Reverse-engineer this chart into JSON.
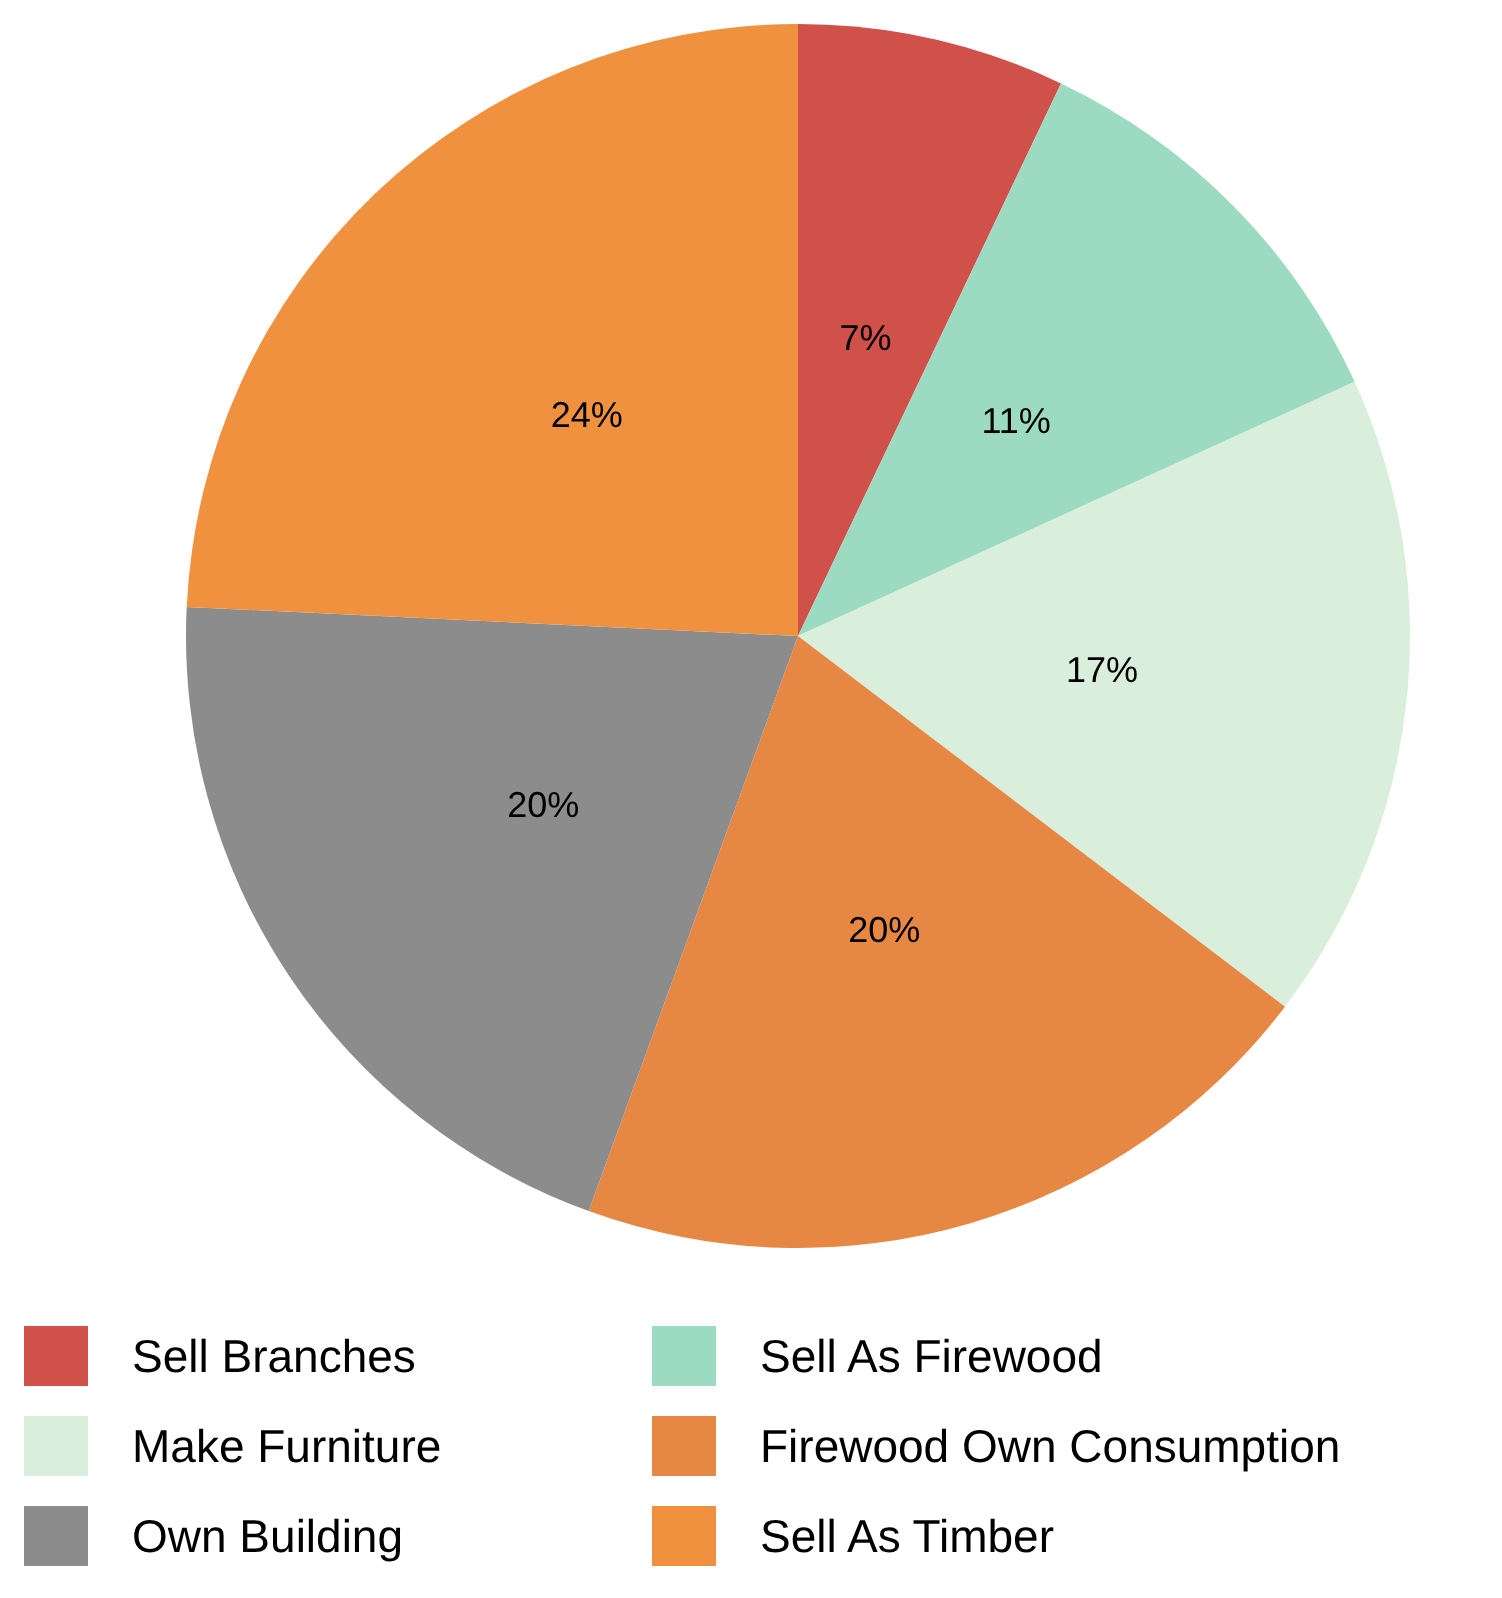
{
  "chart_data": {
    "type": "pie",
    "categories": [
      "Sell Branches",
      "Sell As Firewood",
      "Make Furniture",
      "Firewood Own Consumption",
      "Own Building",
      "Sell As Timber"
    ],
    "values": [
      7,
      11,
      17,
      20,
      20,
      24
    ],
    "colors": [
      "#d0504a",
      "#9cdbc2",
      "#d9eedb",
      "#e68843",
      "#8c8c8c",
      "#f0913f"
    ],
    "value_labels": [
      "7%",
      "11%",
      "17%",
      "20%",
      "20%",
      "24%"
    ],
    "legend": "bottom"
  }
}
